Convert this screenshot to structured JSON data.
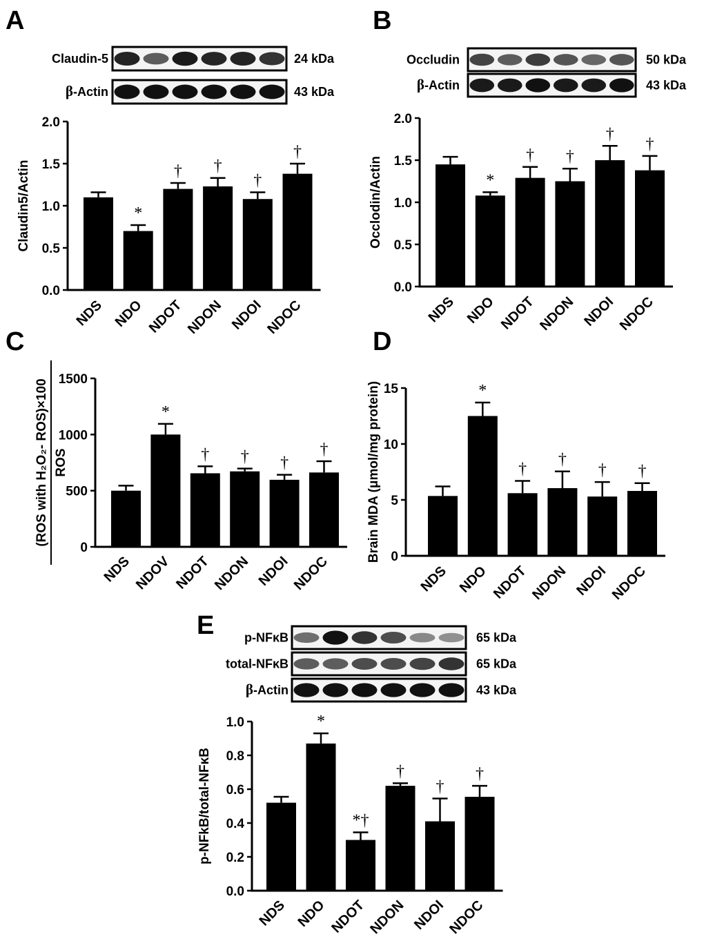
{
  "chart_data": [
    {
      "type": "bar",
      "panel": "A",
      "ylabel": "Claudin5/Actin",
      "ylim": [
        0,
        2.0
      ],
      "yticks": [
        "0.0",
        "0.5",
        "1.0",
        "1.5",
        "2.0"
      ],
      "categories": [
        "NDS",
        "NDO",
        "NDOT",
        "NDON",
        "NDOI",
        "NDOC"
      ],
      "values": [
        1.1,
        0.7,
        1.2,
        1.23,
        1.08,
        1.38
      ],
      "errors": [
        0.06,
        0.07,
        0.07,
        0.1,
        0.08,
        0.12
      ],
      "annotations": [
        "",
        "*",
        "†",
        "†",
        "†",
        "†"
      ],
      "blots": [
        {
          "label": "Claudin-5",
          "size": "24 kDa"
        },
        {
          "label": "β-Actin",
          "size": "43 kDa"
        }
      ]
    },
    {
      "type": "bar",
      "panel": "B",
      "ylabel": "Occlodin/Actin",
      "ylim": [
        0,
        2.0
      ],
      "yticks": [
        "0.0",
        "0.5",
        "1.0",
        "1.5",
        "2.0"
      ],
      "categories": [
        "NDS",
        "NDO",
        "NDOT",
        "NDON",
        "NDOI",
        "NDOC"
      ],
      "values": [
        1.45,
        1.08,
        1.29,
        1.25,
        1.5,
        1.38
      ],
      "errors": [
        0.09,
        0.04,
        0.13,
        0.15,
        0.17,
        0.17
      ],
      "annotations": [
        "",
        "*",
        "†",
        "†",
        "†",
        "†"
      ],
      "blots": [
        {
          "label": "Occludin",
          "size": "50 kDa"
        },
        {
          "label": "β-Actin",
          "size": "43 kDa"
        }
      ]
    },
    {
      "type": "bar",
      "panel": "C",
      "ylabel": "(ROS with H₂O₂- ROS)×100",
      "ylabel_denominator": "ROS",
      "ylim": [
        0,
        1500
      ],
      "yticks": [
        "0",
        "500",
        "1000",
        "1500"
      ],
      "categories": [
        "NDS",
        "NDOV",
        "NDOT",
        "NDON",
        "NDOI",
        "NDOC"
      ],
      "values": [
        500,
        1000,
        655,
        672,
        597,
        662
      ],
      "errors": [
        45,
        95,
        62,
        25,
        45,
        100
      ],
      "annotations": [
        "",
        "*",
        "†",
        "†",
        "†",
        "†"
      ]
    },
    {
      "type": "bar",
      "panel": "D",
      "ylabel": "Brain MDA (μmol/mg protein)",
      "ylim": [
        0,
        15
      ],
      "yticks": [
        "0",
        "5",
        "10",
        "15"
      ],
      "categories": [
        "NDS",
        "NDO",
        "NDOT",
        "NDON",
        "NDOI",
        "NDOC"
      ],
      "values": [
        5.35,
        12.5,
        5.6,
        6.05,
        5.3,
        5.8
      ],
      "errors": [
        0.85,
        1.2,
        1.1,
        1.5,
        1.3,
        0.7
      ],
      "annotations": [
        "",
        "*",
        "†",
        "†",
        "†",
        "†"
      ]
    },
    {
      "type": "bar",
      "panel": "E",
      "ylabel": "p-NFkB/total-NFκB",
      "ylim": [
        0,
        1.0
      ],
      "yticks": [
        "0.0",
        "0.2",
        "0.4",
        "0.6",
        "0.8",
        "1.0"
      ],
      "categories": [
        "NDS",
        "NDO",
        "NDOT",
        "NDON",
        "NDOI",
        "NDOC"
      ],
      "values": [
        0.52,
        0.87,
        0.3,
        0.62,
        0.41,
        0.555
      ],
      "errors": [
        0.035,
        0.06,
        0.045,
        0.015,
        0.135,
        0.065
      ],
      "annotations": [
        "",
        "*",
        "*†",
        "†",
        "†",
        "†"
      ],
      "blots": [
        {
          "label": "p-NFκB",
          "size": "65 kDa"
        },
        {
          "label": "total-NFκB",
          "size": "65 kDa"
        },
        {
          "label": "β-Actin",
          "size": "43 kDa"
        }
      ]
    }
  ]
}
